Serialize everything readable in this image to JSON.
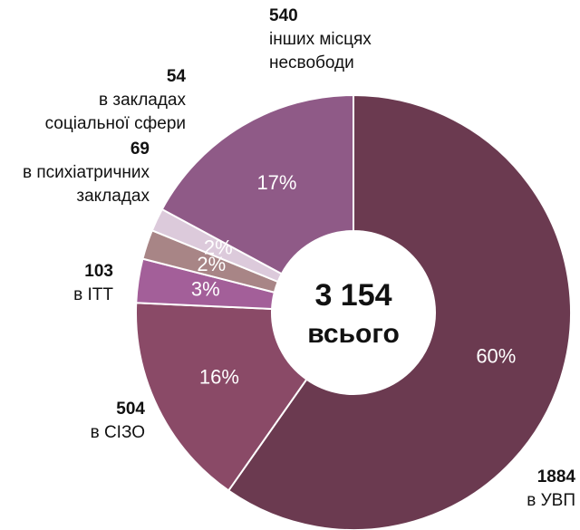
{
  "chart_data": {
    "type": "donut",
    "values": [
      1884,
      504,
      103,
      69,
      54,
      540
    ],
    "labels": [
      [
        "в УВП"
      ],
      [
        "в СІЗО"
      ],
      [
        "в ІТТ"
      ],
      [
        "в психіатричних",
        "закладах"
      ],
      [
        "в закладах",
        "соціальної сфери"
      ],
      [
        "інших місцях",
        "несвободи"
      ]
    ],
    "percent_labels": [
      "60%",
      "16%",
      "3%",
      "2%",
      "2%",
      "17%"
    ],
    "colors": [
      "#6b3a50",
      "#8a4a67",
      "#a35f99",
      "#a88586",
      "#dccadb",
      "#8f5a87"
    ],
    "total_label": "3 154",
    "total_caption": "всього"
  }
}
